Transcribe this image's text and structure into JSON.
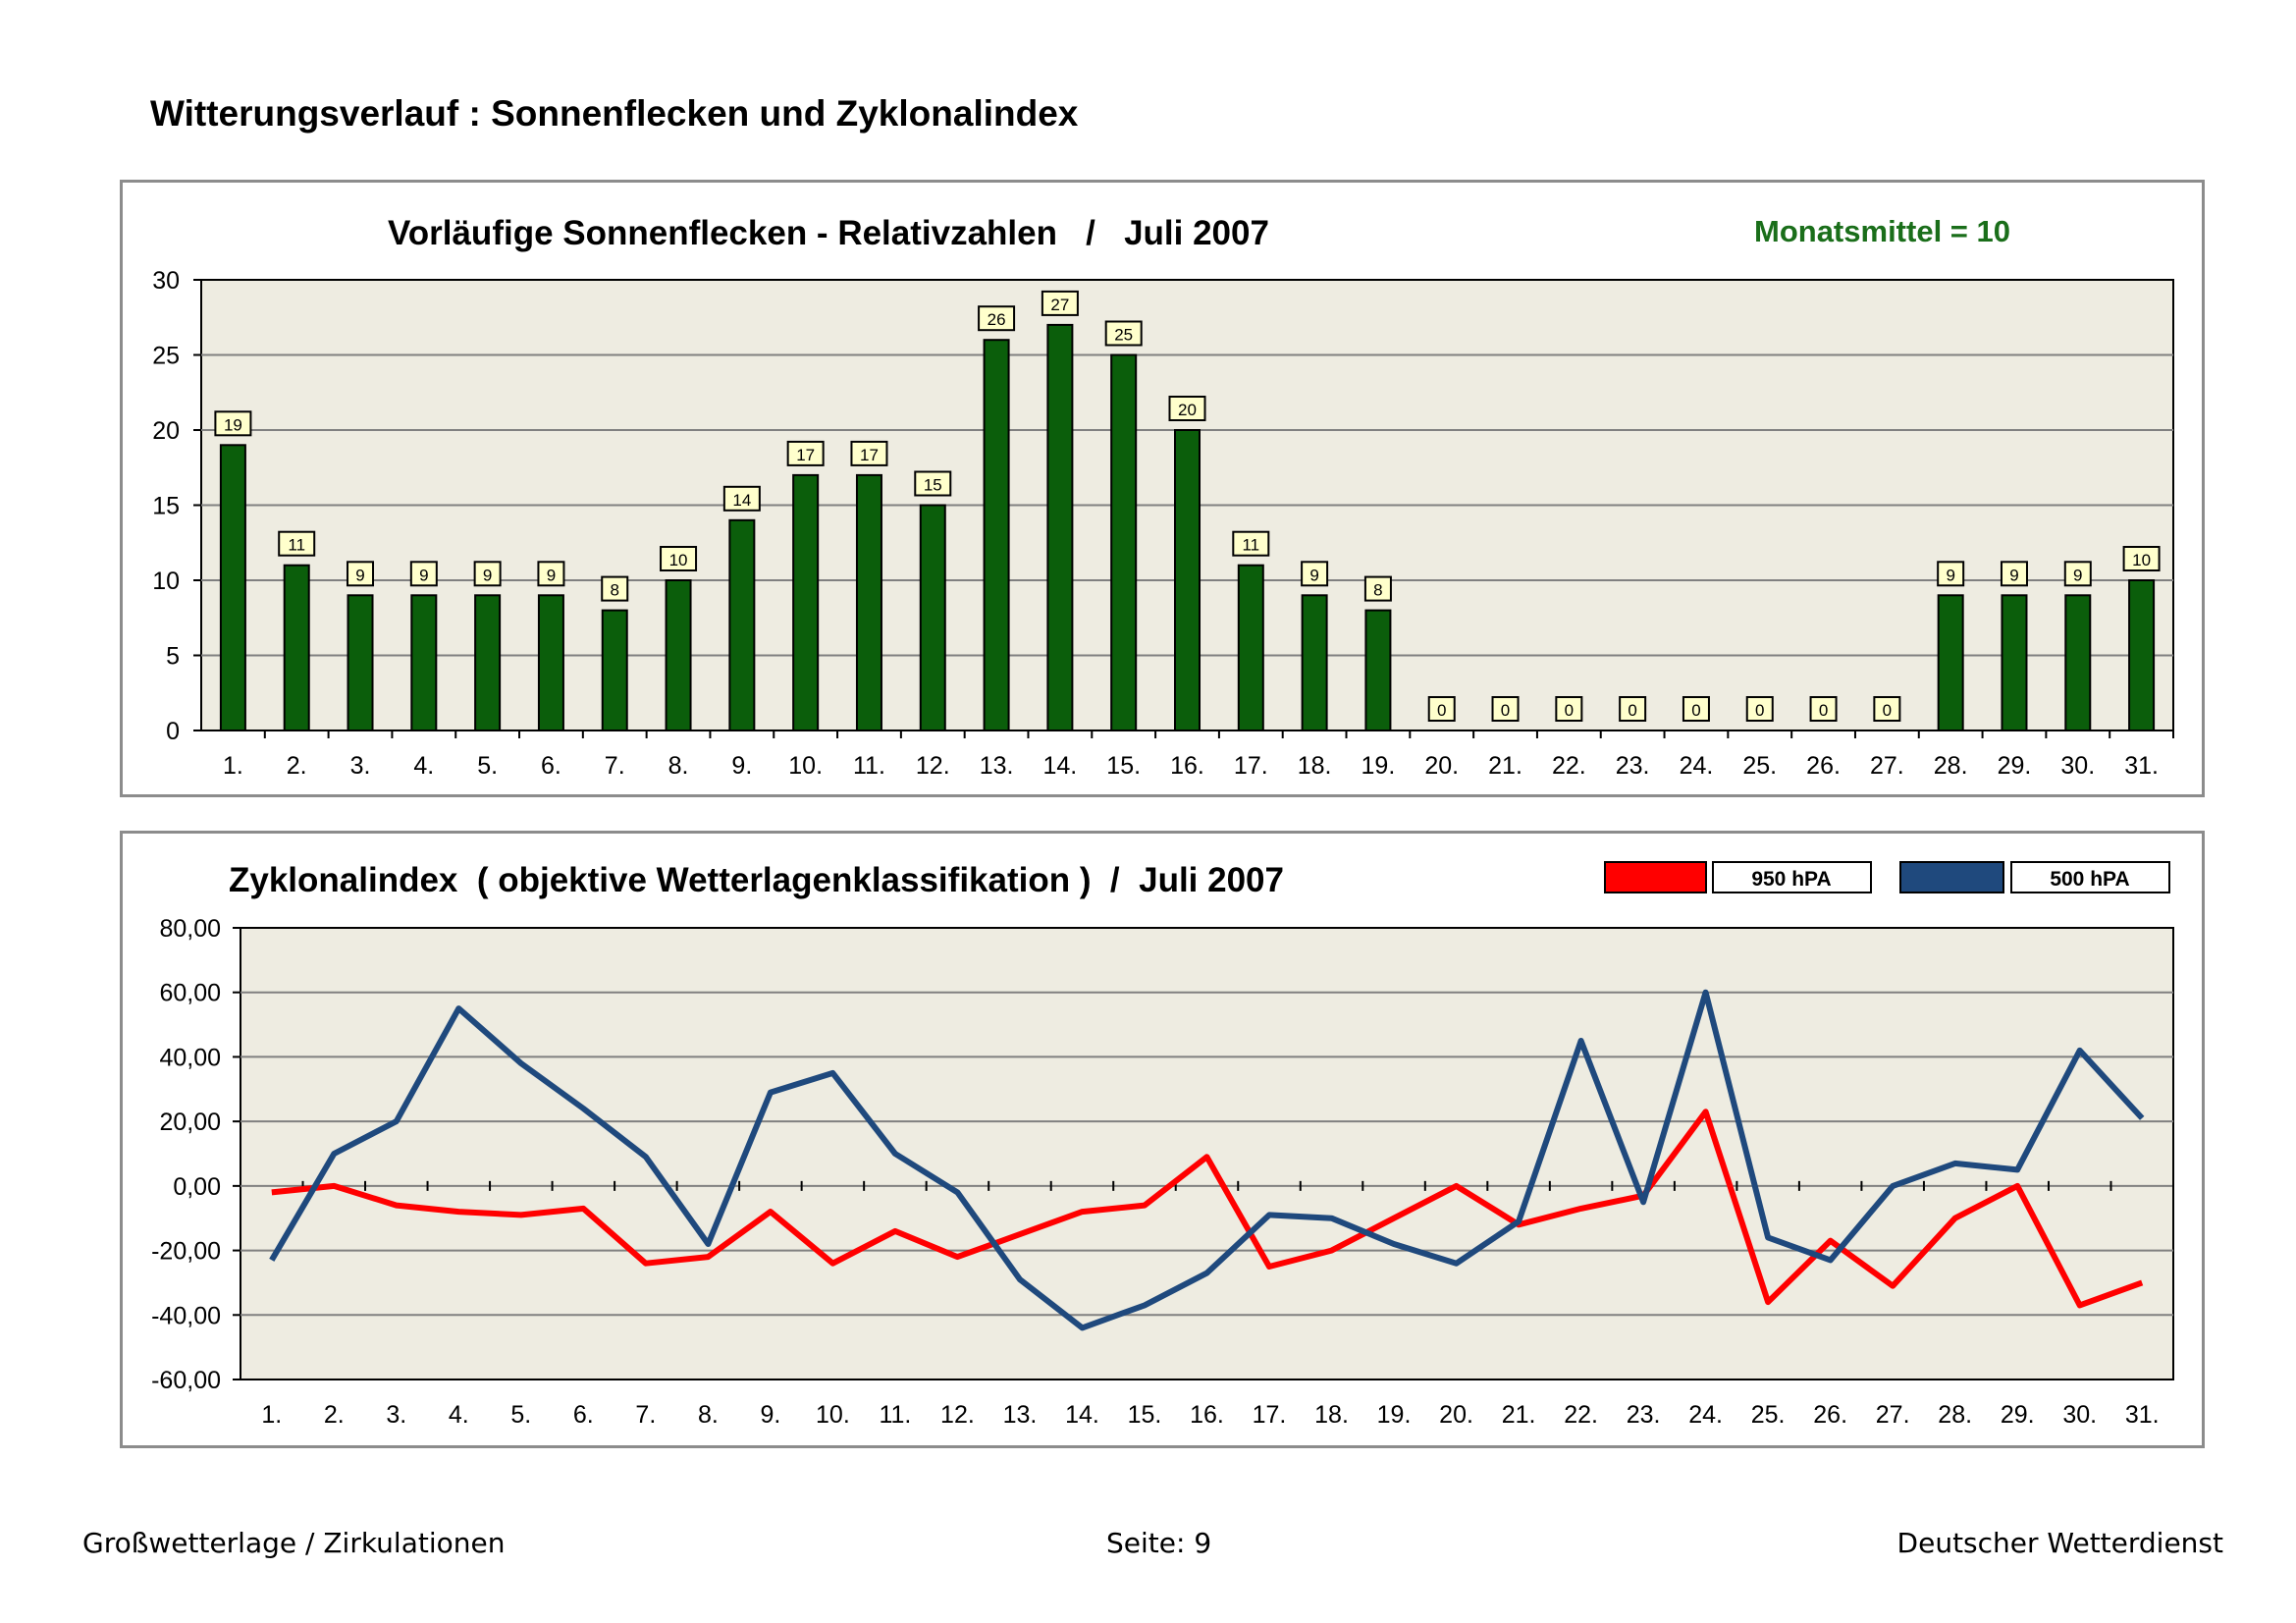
{
  "page": {
    "title": "Witterungsverlauf : Sonnenflecken und Zyklonalindex"
  },
  "footer": {
    "left": "Großwetterlage / Zirkulationen",
    "center": "Seite: 9",
    "right": "Deutscher Wetterdienst"
  },
  "colors": {
    "bar": "#0b5e0b",
    "plot_bg": "#eeece1",
    "label_bg": "#ffffcc",
    "mean_text": "#1a6e1a",
    "line_950": "#ff0000",
    "line_500": "#1f497d"
  },
  "chart_data": [
    {
      "type": "bar",
      "title": "Vorläufige Sonnenflecken - Relativzahlen   /   Juli 2007",
      "annotation": "Monatsmittel = 10",
      "xlabel": "",
      "ylabel": "",
      "ylim": [
        0,
        30
      ],
      "yticks": [
        "0",
        "5",
        "10",
        "15",
        "20",
        "25",
        "30"
      ],
      "grid": true,
      "categories": [
        "1.",
        "2.",
        "3.",
        "4.",
        "5.",
        "6.",
        "7.",
        "8.",
        "9.",
        "10.",
        "11.",
        "12.",
        "13.",
        "14.",
        "15.",
        "16.",
        "17.",
        "18.",
        "19.",
        "20.",
        "21.",
        "22.",
        "23.",
        "24.",
        "25.",
        "26.",
        "27.",
        "28.",
        "29.",
        "30.",
        "31."
      ],
      "values": [
        19,
        11,
        9,
        9,
        9,
        9,
        8,
        10,
        14,
        17,
        17,
        15,
        26,
        27,
        25,
        20,
        11,
        9,
        8,
        0,
        0,
        0,
        0,
        0,
        0,
        0,
        0,
        9,
        9,
        9,
        10
      ]
    },
    {
      "type": "line",
      "title": "Zyklonalindex  ( objektive Wetterlagenklassifikation )  /  Juli 2007",
      "xlabel": "",
      "ylabel": "",
      "ylim": [
        -60,
        80
      ],
      "yticks": [
        "80,00",
        "60,00",
        "40,00",
        "20,00",
        "0,00",
        "-20,00",
        "-40,00",
        "-60,00"
      ],
      "grid": true,
      "legend": "top-right",
      "categories": [
        "1.",
        "2.",
        "3.",
        "4.",
        "5.",
        "6.",
        "7.",
        "8.",
        "9.",
        "10.",
        "11.",
        "12.",
        "13.",
        "14.",
        "15.",
        "16.",
        "17.",
        "18.",
        "19.",
        "20.",
        "21.",
        "22.",
        "23.",
        "24.",
        "25.",
        "26.",
        "27.",
        "28.",
        "29.",
        "30.",
        "31."
      ],
      "series": [
        {
          "name": "950 hPA",
          "values": [
            -2,
            0,
            -6,
            -8,
            -9,
            -7,
            -24,
            -22,
            -8,
            -24,
            -14,
            -22,
            -15,
            -8,
            -6,
            9,
            -25,
            -20,
            -10,
            0,
            -12,
            -7,
            -3,
            23,
            -36,
            -17,
            -31,
            -10,
            0,
            -37,
            -30
          ]
        },
        {
          "name": "500 hPA",
          "values": [
            -23,
            10,
            20,
            55,
            38,
            24,
            9,
            -18,
            29,
            35,
            10,
            -2,
            -29,
            -44,
            -37,
            -27,
            -9,
            -10,
            -18,
            -24,
            -11,
            45,
            -5,
            60,
            -16,
            -23,
            0,
            7,
            5,
            42,
            21
          ]
        }
      ]
    }
  ]
}
